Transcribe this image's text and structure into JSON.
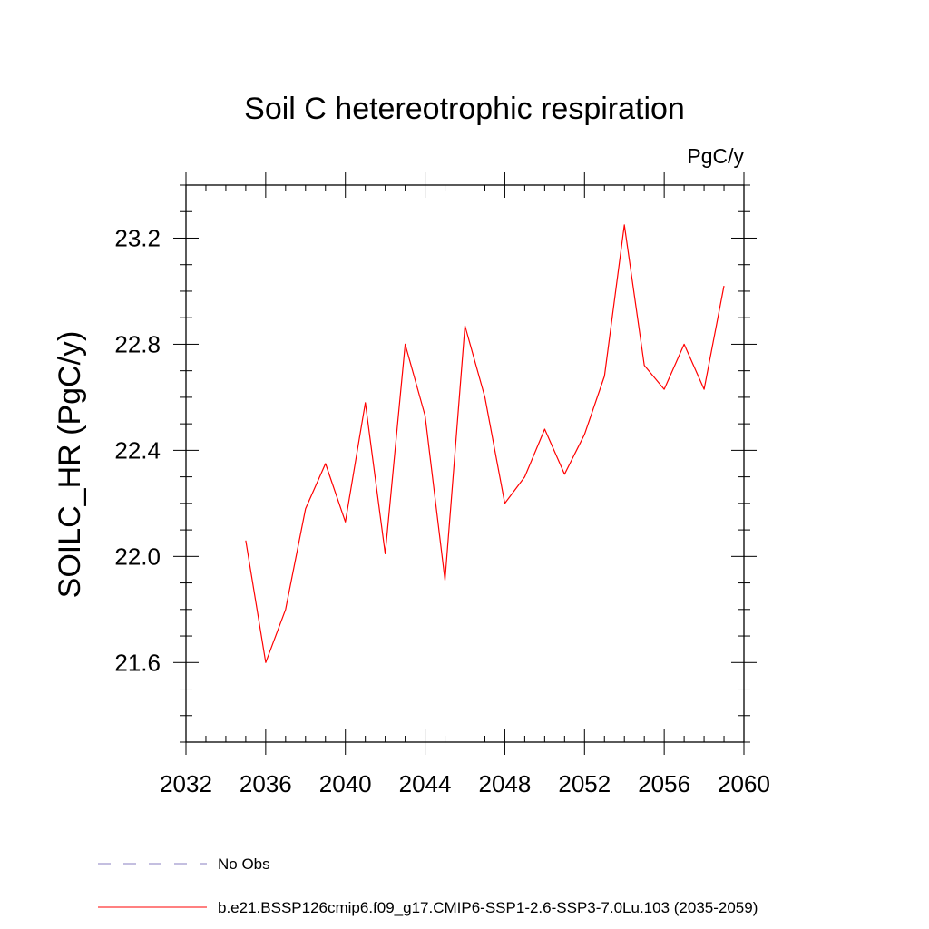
{
  "chart_data": {
    "type": "line",
    "title": "Soil C hetereotrophic respiration",
    "units": "PgC/y",
    "xlabel": "",
    "ylabel": "SOILC_HR  (PgC/y)",
    "xlim": [
      2032,
      2060
    ],
    "ylim": [
      21.3,
      23.4
    ],
    "xticks": [
      2032,
      2036,
      2040,
      2044,
      2048,
      2052,
      2056,
      2060
    ],
    "yticks": [
      21.6,
      22.0,
      22.4,
      22.8,
      23.2
    ],
    "grid": false,
    "legend_placement": "bottom",
    "series": [
      {
        "name": "b.e21.BSSP126cmip6.f09_g17.CMIP6-SSP1-2.6-SSP3-7.0Lu.103 (2035-2059)",
        "color": "#ff0000",
        "style": "solid",
        "x": [
          2035,
          2036,
          2037,
          2038,
          2039,
          2040,
          2041,
          2042,
          2043,
          2044,
          2045,
          2046,
          2047,
          2048,
          2049,
          2050,
          2051,
          2052,
          2053,
          2054,
          2055,
          2056,
          2057,
          2058,
          2059
        ],
        "y": [
          22.06,
          21.6,
          21.8,
          22.18,
          22.35,
          22.13,
          22.58,
          22.01,
          22.8,
          22.53,
          21.91,
          22.87,
          22.6,
          22.2,
          22.3,
          22.48,
          22.31,
          22.46,
          22.68,
          23.25,
          22.72,
          22.63,
          22.8,
          22.63,
          23.02
        ]
      }
    ],
    "legend": [
      {
        "label": "No Obs",
        "color": "#8a7fc0",
        "style": "dashed"
      },
      {
        "label": "b.e21.BSSP126cmip6.f09_g17.CMIP6-SSP1-2.6-SSP3-7.0Lu.103 (2035-2059)",
        "color": "#ff0000",
        "style": "solid"
      }
    ]
  }
}
